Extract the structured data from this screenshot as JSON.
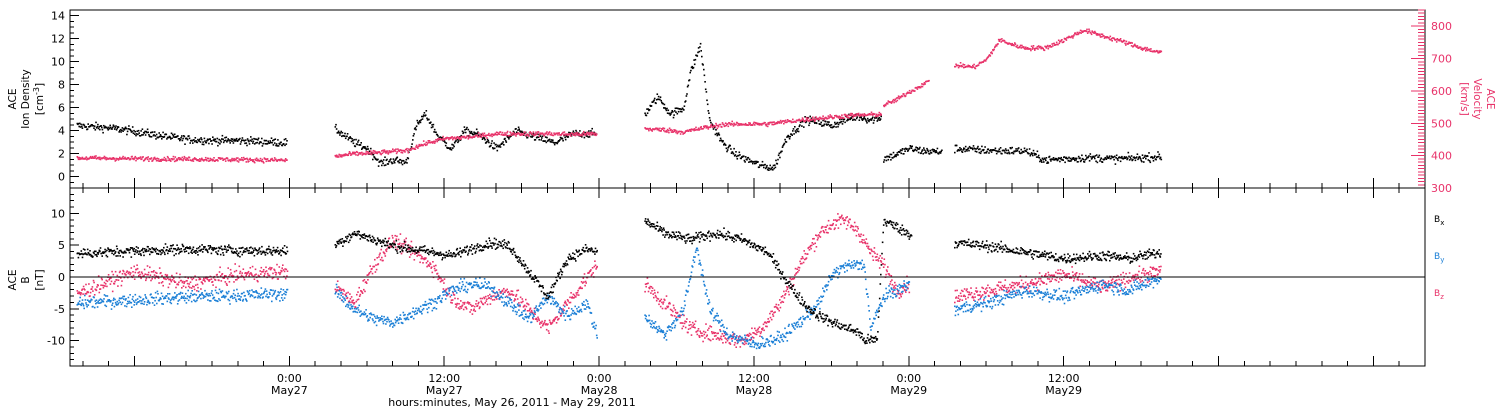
{
  "colors": {
    "black": "#000000",
    "pink": "#e8336a",
    "blue": "#1b7fd6"
  },
  "x_axis": {
    "title": "hours:minutes, May 26, 2011 - May 29, 2011",
    "range_hours": [
      -17,
      88
    ],
    "ticks": [
      {
        "hours": 0,
        "time": "0:00",
        "date": "May27"
      },
      {
        "hours": 12,
        "time": "12:00",
        "date": "May27"
      },
      {
        "hours": 24,
        "time": "0:00",
        "date": "May28"
      },
      {
        "hours": 36,
        "time": "12:00",
        "date": "May28"
      },
      {
        "hours": 48,
        "time": "0:00",
        "date": "May29"
      },
      {
        "hours": 60,
        "time": "12:00",
        "date": "May29"
      }
    ]
  },
  "chart_data": [
    {
      "type": "scatter",
      "panel": "top",
      "left_axis": {
        "label_lines": [
          "ACE",
          "Ion Density"
        ],
        "unit": "[cm",
        "unit_sup": "-3",
        "unit_end": "]",
        "ylim": [
          -1,
          14.5
        ],
        "ticks": [
          0,
          2,
          4,
          6,
          8,
          10,
          12,
          14
        ]
      },
      "right_axis": {
        "label_lines": [
          "ACE",
          "Velocity",
          "[km/s]"
        ],
        "ylim": [
          300,
          850
        ],
        "ticks": [
          300,
          400,
          500,
          600,
          700,
          800
        ]
      },
      "series": [
        {
          "axis": "left",
          "color": "black",
          "segments": [
            {
              "x": [
                -16.5,
                -14,
                -12,
                -10,
                -8,
                -6,
                -4,
                -2,
                -0.2
              ],
              "y": [
                4.5,
                4.3,
                4.0,
                3.6,
                3.3,
                3.2,
                3.2,
                3.1,
                3.0
              ]
            },
            {
              "x": [
                3.5,
                5,
                6,
                7,
                8,
                9,
                9.8,
                10.5,
                11.5,
                12.5,
                13.5,
                14.5,
                16,
                17.5,
                19,
                20.5,
                22,
                23.8
              ],
              "y": [
                4.2,
                3.0,
                2.5,
                1.2,
                1.5,
                1.3,
                4.5,
                5.5,
                3.5,
                2.5,
                4.0,
                3.8,
                2.5,
                4.0,
                3.5,
                3.0,
                3.8,
                3.8
              ]
            },
            {
              "x": [
                27.5,
                28.5,
                29.5,
                30.5,
                31,
                31.8,
                32.5,
                33.5,
                34.5,
                35.5,
                36.5,
                37.5,
                38.5,
                40,
                41,
                42,
                43,
                44,
                45,
                45.8
              ],
              "y": [
                5.5,
                7.0,
                5.5,
                6.0,
                9.0,
                11.5,
                5.0,
                3.0,
                2.0,
                1.5,
                1.0,
                0.8,
                3.5,
                5.0,
                4.8,
                4.5,
                5.0,
                5.3,
                5.0,
                5.2
              ]
            },
            {
              "x": [
                46,
                47,
                48,
                49,
                50.5
              ],
              "y": [
                1.6,
                2.0,
                2.5,
                2.3,
                2.2
              ]
            },
            {
              "x": [
                51.5,
                53,
                55,
                57,
                58.5,
                60,
                62,
                64,
                66,
                67.5
              ],
              "y": [
                2.5,
                2.4,
                2.3,
                2.3,
                1.5,
                1.6,
                1.7,
                1.6,
                1.7,
                1.8
              ]
            }
          ]
        },
        {
          "axis": "right",
          "color": "pink",
          "segments": [
            {
              "x": [
                -16.5,
                -12,
                -8,
                -4,
                -0.2
              ],
              "y": [
                395,
                393,
                392,
                390,
                388
              ]
            },
            {
              "x": [
                3.5,
                5,
                7,
                9,
                10.5,
                12,
                14,
                16,
                18,
                20,
                22,
                23.8
              ],
              "y": [
                400,
                408,
                412,
                418,
                440,
                455,
                460,
                470,
                470,
                470,
                468,
                470
              ]
            },
            {
              "x": [
                27.5,
                29,
                30.5,
                32,
                33.5,
                35,
                37,
                39,
                41,
                43,
                44.5,
                45.8
              ],
              "y": [
                485,
                482,
                475,
                488,
                498,
                500,
                500,
                510,
                518,
                525,
                528,
                530
              ]
            },
            {
              "x": [
                46,
                47,
                47.8,
                48.5,
                49,
                49.5
              ],
              "y": [
                558,
                575,
                595,
                610,
                622,
                632
              ]
            },
            {
              "x": [
                51.5,
                53,
                54,
                55,
                56,
                57,
                58.5,
                60,
                61.5,
                63,
                64.5,
                66,
                67.5
              ],
              "y": [
                682,
                676,
                700,
                760,
                745,
                735,
                735,
                760,
                790,
                772,
                755,
                735,
                720
              ]
            }
          ]
        }
      ]
    },
    {
      "type": "scatter",
      "panel": "bottom",
      "left_axis": {
        "label_lines": [
          "ACE",
          "B",
          "[nT]"
        ],
        "ylim": [
          -14,
          14
        ],
        "ticks": [
          -10,
          -5,
          0,
          5,
          10
        ]
      },
      "legend": {
        "placement": "right",
        "entries": [
          {
            "name": "B",
            "sub": "x",
            "color": "black"
          },
          {
            "name": "B",
            "sub": "y",
            "color": "blue"
          },
          {
            "name": "B",
            "sub": "z",
            "color": "pink"
          }
        ]
      },
      "series": [
        {
          "name": "Bx",
          "color": "black",
          "segments": [
            {
              "x": [
                -16.5,
                -12,
                -8,
                -4,
                -0.2
              ],
              "y": [
                3.8,
                4.2,
                4.5,
                4.3,
                4.2
              ]
            },
            {
              "x": [
                3.5,
                5,
                6.5,
                8,
                9.5,
                11,
                12.5,
                14,
                15.5,
                17,
                18.5,
                20,
                21.5,
                23,
                23.8
              ],
              "y": [
                5.2,
                7.0,
                6.0,
                5.0,
                4.5,
                4.0,
                3.5,
                4.5,
                5.5,
                5.0,
                1.0,
                -3.0,
                3.0,
                4.5,
                4.0
              ]
            },
            {
              "x": [
                27.5,
                29,
                31,
                33,
                35,
                36,
                37,
                38,
                39,
                40,
                41,
                42,
                43,
                44,
                44.5,
                45.5,
                46,
                47,
                48,
                48.2
              ],
              "y": [
                9.0,
                7.0,
                6.0,
                7.0,
                6.0,
                5.0,
                4.0,
                1.0,
                -2.0,
                -4.5,
                -6.0,
                -7.0,
                -7.8,
                -8.5,
                -9.8,
                -9.8,
                9.0,
                8.0,
                6.8,
                6.5
              ]
            },
            {
              "x": [
                51.5,
                54,
                57,
                60,
                63,
                65,
                67.5
              ],
              "y": [
                5.5,
                5.0,
                4.0,
                3.0,
                3.5,
                3.0,
                4.0
              ]
            }
          ]
        },
        {
          "name": "By",
          "color": "blue",
          "segments": [
            {
              "x": [
                -16.5,
                -12,
                -8,
                -4,
                -0.2
              ],
              "y": [
                -4.0,
                -3.5,
                -3.0,
                -2.8,
                -2.5
              ]
            },
            {
              "x": [
                3.5,
                5,
                6.5,
                8,
                9.5,
                11,
                12.5,
                14,
                15.5,
                17,
                18.5,
                20,
                21.5,
                23,
                23.8
              ],
              "y": [
                -2.0,
                -5.0,
                -6.5,
                -7.0,
                -5.5,
                -4.0,
                -2.0,
                -1.0,
                -1.5,
                -4.0,
                -6.5,
                -3.0,
                -6.0,
                -4.0,
                -9.0
              ]
            },
            {
              "x": [
                27.5,
                29,
                30.5,
                31.5,
                32.5,
                34,
                36,
                37,
                38,
                39.5,
                41,
                42,
                43,
                44,
                44.5,
                45,
                46,
                47,
                48
              ],
              "y": [
                -6.0,
                -9.0,
                -5.0,
                5.0,
                -5.0,
                -9.0,
                -10.5,
                -10.0,
                -9.5,
                -7.0,
                -4.0,
                0.5,
                1.8,
                2.0,
                2.0,
                -8.0,
                -3.0,
                -2.0,
                -1.0
              ]
            },
            {
              "x": [
                51.5,
                54,
                57,
                60,
                63,
                65,
                67.5
              ],
              "y": [
                -5.0,
                -4.0,
                -2.0,
                -3.0,
                -1.0,
                -2.0,
                0.0
              ]
            }
          ]
        },
        {
          "name": "Bz",
          "color": "pink",
          "segments": [
            {
              "x": [
                -16.5,
                -12,
                -8,
                -4,
                -0.2
              ],
              "y": [
                -2.5,
                1.0,
                -1.0,
                0.5,
                1.0
              ]
            },
            {
              "x": [
                3.5,
                5,
                6.5,
                8,
                9.5,
                11,
                12.5,
                14,
                15.5,
                17,
                18.5,
                20,
                21.5,
                23,
                23.8
              ],
              "y": [
                -1.5,
                -4.0,
                2.0,
                6.0,
                4.0,
                2.0,
                -3.0,
                -5.0,
                -3.0,
                -2.0,
                -5.0,
                -8.0,
                -4.0,
                0.0,
                2.0
              ]
            },
            {
              "x": [
                27.5,
                29,
                31,
                33,
                35,
                36.5,
                38,
                39.5,
                41,
                42,
                43,
                44,
                45,
                46,
                47,
                48
              ],
              "y": [
                -1.0,
                -4.0,
                -8.0,
                -9.0,
                -10.0,
                -8.0,
                -4.0,
                2.0,
                7.0,
                8.5,
                9.0,
                7.5,
                4.0,
                2.0,
                -2.0,
                -1.0
              ]
            },
            {
              "x": [
                51.5,
                54,
                57,
                60,
                63,
                65,
                67.5
              ],
              "y": [
                -3.0,
                -2.0,
                -1.0,
                0.5,
                -1.5,
                0.0,
                1.0
              ]
            }
          ]
        }
      ]
    }
  ]
}
